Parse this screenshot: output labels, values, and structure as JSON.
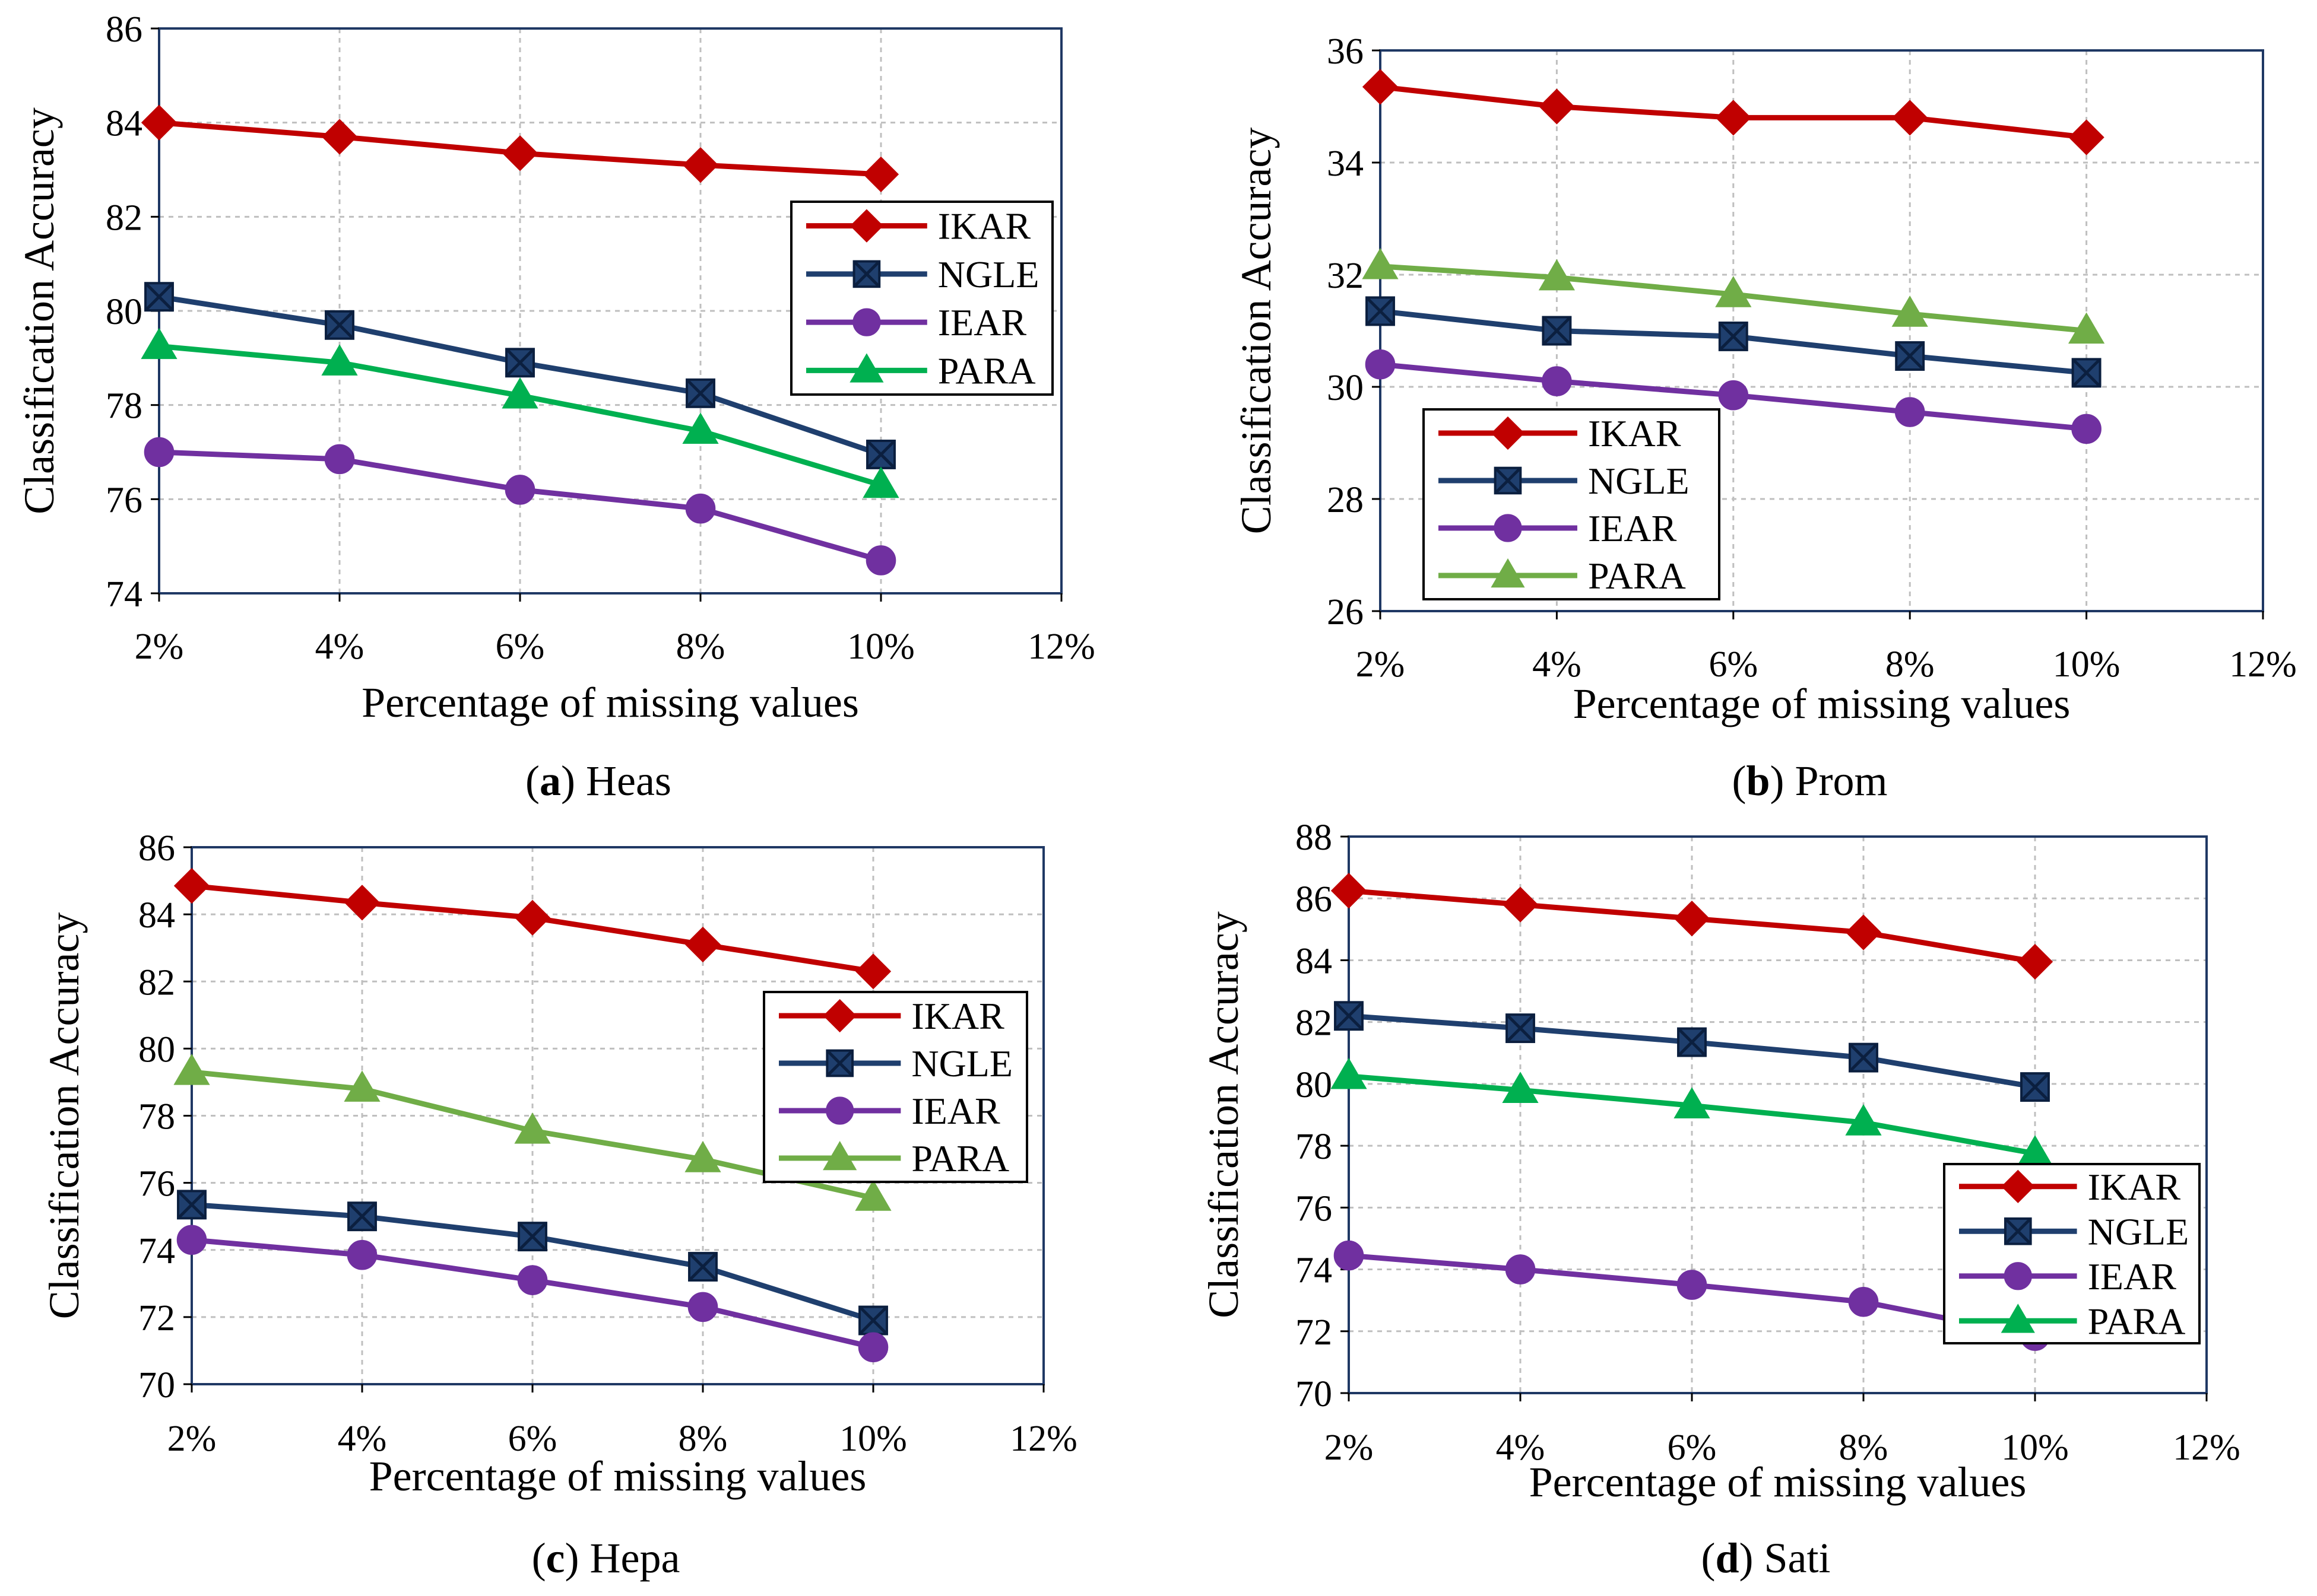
{
  "colors": {
    "IKAR": "#C00000",
    "NGLE": "#1F3F6E",
    "IEAR": "#7030A0",
    "PARA_heas": "#00B050",
    "PARA_prom": "#70AD47",
    "PARA_hepa": "#70AD47",
    "PARA_sati": "#00B050",
    "frame": "#1F3864",
    "grid": "#BFBFBF"
  },
  "chart_data": [
    {
      "id": "heas",
      "type": "line",
      "caption_letter": "(a)",
      "caption_letter_bold": "a",
      "caption_name": "Heas",
      "ylabel": "Classification Accuracy",
      "xlabel": "Percentage  of missing values",
      "x_ticks": [
        "2%",
        "4%",
        "6%",
        "8%",
        "10%",
        "12%"
      ],
      "ylim": [
        74,
        86
      ],
      "y_ticks": [
        74,
        76,
        78,
        80,
        82,
        84,
        86
      ],
      "legend_position": "right-middle",
      "series": [
        {
          "name": "IKAR",
          "marker": "diamond",
          "values": [
            84.0,
            83.7,
            83.35,
            83.1,
            82.9
          ]
        },
        {
          "name": "NGLE",
          "marker": "square-x",
          "values": [
            80.3,
            79.7,
            78.9,
            78.25,
            76.95
          ]
        },
        {
          "name": "IEAR",
          "marker": "circle",
          "values": [
            77.0,
            76.85,
            76.2,
            75.8,
            74.7
          ]
        },
        {
          "name": "PARA",
          "marker": "triangle",
          "values": [
            79.25,
            78.9,
            78.2,
            77.45,
            76.3
          ]
        }
      ]
    },
    {
      "id": "prom",
      "type": "line",
      "caption_letter": "(b)",
      "caption_letter_bold": "b",
      "caption_name": "Prom",
      "ylabel": "Classification Accuracy",
      "xlabel": "Percentage  of missing values",
      "x_ticks": [
        "2%",
        "4%",
        "6%",
        "8%",
        "10%",
        "12%"
      ],
      "ylim": [
        26,
        36
      ],
      "y_ticks": [
        26,
        28,
        30,
        32,
        34,
        36
      ],
      "legend_position": "bottom-left",
      "series": [
        {
          "name": "IKAR",
          "marker": "diamond",
          "values": [
            35.35,
            35.0,
            34.8,
            34.8,
            34.45
          ]
        },
        {
          "name": "NGLE",
          "marker": "square-x",
          "values": [
            31.35,
            31.0,
            30.9,
            30.55,
            30.25
          ]
        },
        {
          "name": "IEAR",
          "marker": "circle",
          "values": [
            30.4,
            30.1,
            29.85,
            29.55,
            29.25
          ]
        },
        {
          "name": "PARA",
          "marker": "triangle",
          "values": [
            32.15,
            31.95,
            31.65,
            31.3,
            31.0
          ]
        }
      ]
    },
    {
      "id": "hepa",
      "type": "line",
      "caption_letter": "(c)",
      "caption_letter_bold": "c",
      "caption_name": "Hepa",
      "ylabel": "Classification Accuracy",
      "xlabel": "Percentage  of missing values",
      "x_ticks": [
        "2%",
        "4%",
        "6%",
        "8%",
        "10%",
        "12%"
      ],
      "ylim": [
        70,
        86
      ],
      "y_ticks": [
        70,
        72,
        74,
        76,
        78,
        80,
        82,
        84,
        86
      ],
      "legend_position": "right-middle",
      "series": [
        {
          "name": "IKAR",
          "marker": "diamond",
          "values": [
            84.85,
            84.35,
            83.9,
            83.1,
            82.3
          ]
        },
        {
          "name": "NGLE",
          "marker": "square-x",
          "values": [
            75.35,
            75.0,
            74.4,
            73.5,
            71.9
          ]
        },
        {
          "name": "IEAR",
          "marker": "circle",
          "values": [
            74.3,
            73.85,
            73.1,
            72.3,
            71.1
          ]
        },
        {
          "name": "PARA",
          "marker": "triangle",
          "values": [
            79.3,
            78.8,
            77.55,
            76.7,
            75.55
          ]
        }
      ]
    },
    {
      "id": "sati",
      "type": "line",
      "caption_letter": "(d)",
      "caption_letter_bold": "d",
      "caption_name": "Sati",
      "ylabel": "Classification Accuracy",
      "xlabel": "Percentage  of missing values",
      "x_ticks": [
        "2%",
        "4%",
        "6%",
        "8%",
        "10%",
        "12%"
      ],
      "ylim": [
        70,
        88
      ],
      "y_ticks": [
        70,
        72,
        74,
        76,
        78,
        80,
        82,
        84,
        86,
        88
      ],
      "legend_position": "bottom-right",
      "series": [
        {
          "name": "IKAR",
          "marker": "diamond",
          "values": [
            86.25,
            85.8,
            85.35,
            84.9,
            83.95
          ]
        },
        {
          "name": "NGLE",
          "marker": "square-x",
          "values": [
            82.2,
            81.8,
            81.35,
            80.85,
            79.9
          ]
        },
        {
          "name": "IEAR",
          "marker": "circle",
          "values": [
            74.45,
            74.0,
            73.5,
            72.95,
            71.85
          ]
        },
        {
          "name": "PARA",
          "marker": "triangle",
          "values": [
            80.25,
            79.8,
            79.3,
            78.75,
            77.75
          ]
        }
      ]
    }
  ]
}
